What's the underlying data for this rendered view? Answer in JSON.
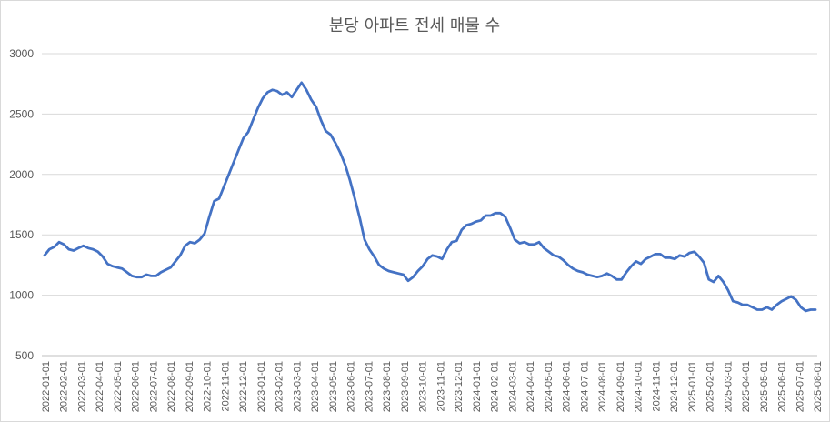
{
  "chart_data": {
    "type": "line",
    "title": "분당 아파트 전세 매물 수",
    "xlabel": "",
    "ylabel": "",
    "ylim": [
      500,
      3000
    ],
    "yticks": [
      500,
      1000,
      1500,
      2000,
      2500,
      3000
    ],
    "grid": true,
    "legend": "none",
    "color": "#4472C4",
    "x_tick_labels": [
      "2022-01-01",
      "2022-02-01",
      "2022-03-01",
      "2022-04-01",
      "2022-05-01",
      "2022-06-01",
      "2022-07-01",
      "2022-08-01",
      "2022-09-01",
      "2022-10-01",
      "2022-11-01",
      "2022-12-01",
      "2023-01-01",
      "2023-02-01",
      "2023-03-01",
      "2023-04-01",
      "2023-05-01",
      "2023-06-01",
      "2023-07-01",
      "2023-08-01",
      "2023-09-01",
      "2023-10-01",
      "2023-11-01",
      "2023-12-01",
      "2024-01-01",
      "2024-02-01",
      "2024-03-01",
      "2024-04-01",
      "2024-05-01",
      "2024-06-01",
      "2024-07-01",
      "2024-08-01",
      "2024-09-01",
      "2024-10-01",
      "2024-11-01",
      "2024-12-01",
      "2025-01-01",
      "2025-02-01",
      "2025-03-01",
      "2025-04-01",
      "2025-05-01",
      "2025-06-01",
      "2025-07-01",
      "2025-08-01"
    ],
    "series": [
      {
        "values": [
          1330,
          1380,
          1400,
          1440,
          1420,
          1380,
          1370,
          1390,
          1410,
          1390,
          1380,
          1360,
          1320,
          1260,
          1240,
          1230,
          1220,
          1190,
          1160,
          1150,
          1150,
          1170,
          1160,
          1160,
          1190,
          1210,
          1230,
          1280,
          1330,
          1410,
          1440,
          1430,
          1460,
          1510,
          1650,
          1780,
          1800,
          1900,
          2000,
          2100,
          2200,
          2300,
          2350,
          2450,
          2550,
          2630,
          2680,
          2700,
          2690,
          2660,
          2680,
          2640,
          2700,
          2760,
          2700,
          2620,
          2560,
          2450,
          2360,
          2330,
          2260,
          2180,
          2080,
          1950,
          1800,
          1640,
          1460,
          1380,
          1320,
          1250,
          1220,
          1200,
          1190,
          1180,
          1170,
          1120,
          1150,
          1200,
          1240,
          1300,
          1330,
          1320,
          1300,
          1380,
          1440,
          1450,
          1540,
          1580,
          1590,
          1610,
          1620,
          1660,
          1660,
          1680,
          1680,
          1650,
          1560,
          1460,
          1430,
          1440,
          1420,
          1420,
          1440,
          1390,
          1360,
          1330,
          1320,
          1290,
          1250,
          1220,
          1200,
          1190,
          1170,
          1160,
          1150,
          1160,
          1180,
          1160,
          1130,
          1130,
          1190,
          1240,
          1280,
          1260,
          1300,
          1320,
          1340,
          1340,
          1310,
          1310,
          1300,
          1330,
          1320,
          1350,
          1360,
          1320,
          1270,
          1130,
          1110,
          1160,
          1110,
          1040,
          950,
          940,
          920,
          920,
          900,
          880,
          880,
          900,
          880,
          920,
          950,
          970,
          990,
          960,
          900,
          870,
          880,
          880
        ]
      }
    ]
  }
}
